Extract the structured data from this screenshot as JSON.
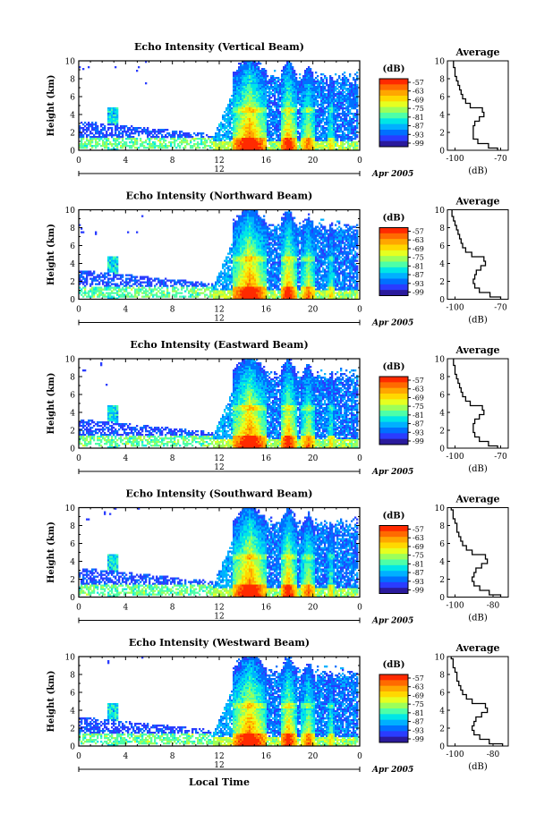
{
  "page": {
    "xlabel": "Local Time"
  },
  "colorbar": {
    "unit": "(dB)",
    "ticks": [
      "-57",
      "-63",
      "-69",
      "-75",
      "-81",
      "-87",
      "-93",
      "-99"
    ],
    "colors": [
      "#ff2a00",
      "#ff6a00",
      "#ffa600",
      "#ffd800",
      "#e6ff20",
      "#9cff5a",
      "#4dffa8",
      "#00e6e6",
      "#00b0ff",
      "#0070ff",
      "#2a3cff",
      "#2a1a9c"
    ]
  },
  "chart_data": [
    {
      "type": "heatmap",
      "title": "Echo Intensity (Vertical Beam)",
      "ylabel": "Height (km)",
      "ylim": [
        0,
        10
      ],
      "yticks": [
        "0",
        "2",
        "4",
        "6",
        "8",
        "10"
      ],
      "xticks": [
        "0",
        "4",
        "8",
        "12",
        "16",
        "20",
        "0"
      ],
      "xlim": [
        0,
        24
      ],
      "date_tick": "12",
      "date_label": "Apr 2005",
      "colorbar_range_db": [
        -99,
        -57
      ],
      "average_profile": {
        "title": "Average",
        "xlabel": "(dB)",
        "xticks": [
          "-100",
          "-70"
        ],
        "xlim": [
          -105,
          -65
        ],
        "height_km": [
          0,
          0.5,
          1,
          1.5,
          2,
          2.5,
          3,
          3.5,
          4,
          4.5,
          5,
          5.5,
          6,
          6.5,
          7,
          7.5,
          8,
          8.5,
          9,
          9.5,
          10
        ],
        "db": [
          -72,
          -78,
          -85,
          -88,
          -88,
          -88,
          -87,
          -84,
          -81,
          -82,
          -90,
          -93,
          -95,
          -96,
          -97,
          -98,
          -99,
          -100,
          -100,
          -101,
          -101
        ]
      }
    },
    {
      "type": "heatmap",
      "title": "Echo Intensity (Northward Beam)",
      "ylabel": "Height (km)",
      "ylim": [
        0,
        10
      ],
      "yticks": [
        "0",
        "2",
        "4",
        "6",
        "8",
        "10"
      ],
      "xticks": [
        "0",
        "4",
        "8",
        "12",
        "16",
        "20",
        "0"
      ],
      "xlim": [
        0,
        24
      ],
      "date_tick": "12",
      "date_label": "Apr 2005",
      "colorbar_range_db": [
        -99,
        -57
      ],
      "average_profile": {
        "title": "Average",
        "xlabel": "(dB)",
        "xticks": [
          "-100",
          "-70"
        ],
        "xlim": [
          -105,
          -65
        ],
        "height_km": [
          0,
          0.5,
          1,
          1.5,
          2,
          2.5,
          3,
          3.5,
          4,
          4.5,
          5,
          5.5,
          6,
          6.5,
          7,
          7.5,
          8,
          8.5,
          9,
          9.5,
          10
        ],
        "db": [
          -70,
          -77,
          -84,
          -87,
          -88,
          -87,
          -86,
          -83,
          -80,
          -81,
          -89,
          -93,
          -95,
          -96,
          -97,
          -98,
          -99,
          -100,
          -101,
          -102,
          -102
        ]
      }
    },
    {
      "type": "heatmap",
      "title": "Echo Intensity (Eastward Beam)",
      "ylabel": "Height (km)",
      "ylim": [
        0,
        10
      ],
      "yticks": [
        "0",
        "2",
        "4",
        "6",
        "8",
        "10"
      ],
      "xticks": [
        "0",
        "4",
        "8",
        "12",
        "16",
        "20",
        "0"
      ],
      "xlim": [
        0,
        24
      ],
      "date_tick": "12",
      "date_label": "Apr 2005",
      "colorbar_range_db": [
        -99,
        -57
      ],
      "average_profile": {
        "title": "Average",
        "xlabel": "(dB)",
        "xticks": [
          "-100",
          "-70"
        ],
        "xlim": [
          -105,
          -65
        ],
        "height_km": [
          0,
          0.5,
          1,
          1.5,
          2,
          2.5,
          3,
          3.5,
          4,
          4.5,
          5,
          5.5,
          6,
          6.5,
          7,
          7.5,
          8,
          8.5,
          9,
          9.5,
          10
        ],
        "db": [
          -72,
          -78,
          -84,
          -87,
          -88,
          -88,
          -87,
          -84,
          -81,
          -82,
          -90,
          -93,
          -95,
          -96,
          -97,
          -98,
          -99,
          -100,
          -100,
          -101,
          -101
        ]
      }
    },
    {
      "type": "heatmap",
      "title": "Echo Intensity (Southward Beam)",
      "ylabel": "Height (km)",
      "ylim": [
        0,
        10
      ],
      "yticks": [
        "0",
        "2",
        "4",
        "6",
        "8",
        "10"
      ],
      "xticks": [
        "0",
        "4",
        "8",
        "12",
        "16",
        "20",
        "0"
      ],
      "xlim": [
        0,
        24
      ],
      "date_tick": "12",
      "date_label": "Apr 2005",
      "colorbar_range_db": [
        -99,
        -57
      ],
      "average_profile": {
        "title": "Average",
        "xlabel": "(dB)",
        "xticks": [
          "-100",
          "-80"
        ],
        "xlim": [
          -104,
          -72
        ],
        "height_km": [
          0,
          0.5,
          1,
          1.5,
          2,
          2.5,
          3,
          3.5,
          4,
          4.5,
          5,
          5.5,
          6,
          6.5,
          7,
          7.5,
          8,
          8.5,
          9,
          9.5,
          10
        ],
        "db": [
          -76,
          -82,
          -87,
          -90,
          -91,
          -90,
          -89,
          -86,
          -83,
          -84,
          -91,
          -94,
          -96,
          -97,
          -98,
          -99,
          -99,
          -100,
          -101,
          -101,
          -102
        ]
      }
    },
    {
      "type": "heatmap",
      "title": "Echo Intensity (Westward Beam)",
      "ylabel": "Height (km)",
      "ylim": [
        0,
        10
      ],
      "yticks": [
        "0",
        "2",
        "4",
        "6",
        "8",
        "10"
      ],
      "xticks": [
        "0",
        "4",
        "8",
        "12",
        "16",
        "20",
        "0"
      ],
      "xlim": [
        0,
        24
      ],
      "date_tick": "12",
      "date_label": "Apr 2005",
      "colorbar_range_db": [
        -99,
        -57
      ],
      "average_profile": {
        "title": "Average",
        "xlabel": "(dB)",
        "xticks": [
          "-100",
          "-80"
        ],
        "xlim": [
          -104,
          -72
        ],
        "height_km": [
          0,
          0.5,
          1,
          1.5,
          2,
          2.5,
          3,
          3.5,
          4,
          4.5,
          5,
          5.5,
          6,
          6.5,
          7,
          7.5,
          8,
          8.5,
          9,
          9.5,
          10
        ],
        "db": [
          -75,
          -82,
          -87,
          -90,
          -91,
          -90,
          -89,
          -86,
          -83,
          -84,
          -91,
          -94,
          -96,
          -97,
          -98,
          -99,
          -99,
          -100,
          -101,
          -101,
          -102
        ]
      }
    }
  ]
}
